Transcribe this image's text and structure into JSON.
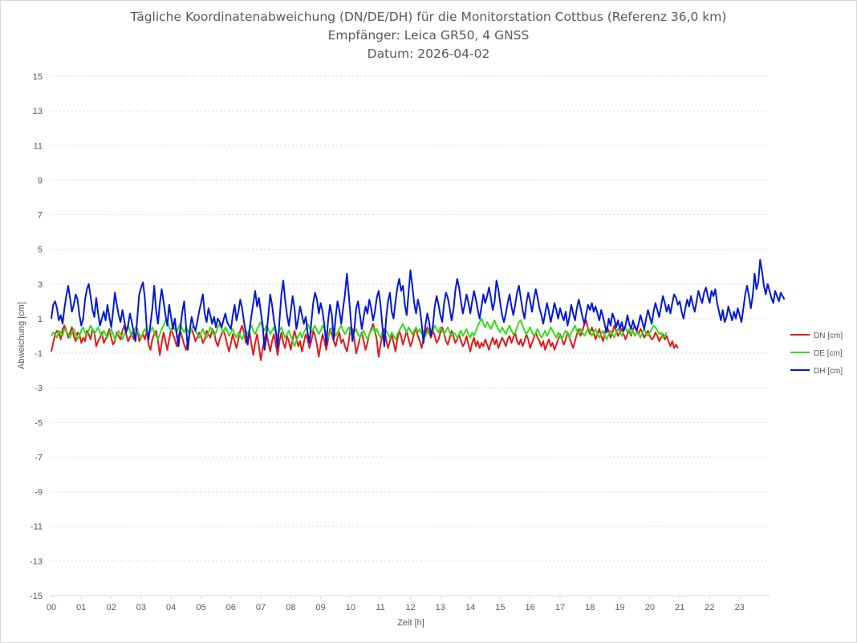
{
  "chart_data": {
    "type": "line",
    "title": [
      "Tägliche Koordinatenabweichung (DN/DE/DH) für die Monitorstation Cottbus (Referenz 36,0 km)",
      "Empfänger: Leica GR50, 4 GNSS",
      "Datum: 2026-04-02"
    ],
    "xlabel": "Zeit [h]",
    "ylabel": "Abweichung [cm]",
    "xlim": [
      0,
      24
    ],
    "ylim": [
      -15,
      15
    ],
    "x_ticks": [
      "00",
      "01",
      "02",
      "03",
      "04",
      "05",
      "06",
      "07",
      "08",
      "09",
      "10",
      "11",
      "12",
      "13",
      "14",
      "15",
      "16",
      "17",
      "18",
      "19",
      "20",
      "21",
      "22",
      "23"
    ],
    "y_ticks": [
      15,
      13,
      11,
      9,
      7,
      5,
      3,
      1,
      -1,
      -3,
      -5,
      -7,
      -9,
      -11,
      -13,
      -15
    ],
    "grid": "horizontal-dotted",
    "legend": "right",
    "x_step_h": 0.0625,
    "series": [
      {
        "name": "DN [cm]",
        "color": "#e31a1c",
        "values": [
          -0.9,
          -0.4,
          0.1,
          0.3,
          0.2,
          -0.2,
          0.4,
          0.6,
          0.3,
          -0.1,
          0.2,
          0.5,
          0.0,
          -0.3,
          0.2,
          0.1,
          -0.4,
          -0.1,
          -0.3,
          0.3,
          0.1,
          -0.2,
          0.4,
          0.2,
          -0.6,
          -0.3,
          -0.1,
          0.2,
          -0.4,
          -0.2,
          0.1,
          0.4,
          -0.1,
          -0.5,
          -0.3,
          0.2,
          0.0,
          -0.2,
          0.3,
          0.6,
          0.1,
          -0.3,
          -0.1,
          0.2,
          -0.2,
          0.1,
          0.4,
          -0.3,
          -0.1,
          0.1,
          -0.2,
          0.3,
          -0.5,
          -0.8,
          -0.2,
          0.1,
          0.3,
          -0.3,
          -1.1,
          -0.4,
          0.2,
          -0.3,
          -0.8,
          -0.2,
          0.4,
          0.1,
          -0.2,
          -0.6,
          0.0,
          0.3,
          -0.1,
          -0.5,
          -0.8,
          -0.3,
          0.2,
          0.4,
          0.1,
          -0.3,
          -0.1,
          0.2,
          0.0,
          -0.4,
          -0.2,
          0.3,
          0.1,
          -0.1,
          0.4,
          0.2,
          -0.3,
          -0.6,
          -0.2,
          0.1,
          0.3,
          0.0,
          -0.5,
          -0.9,
          -0.4,
          0.1,
          -0.3,
          -0.7,
          -0.2,
          0.3,
          0.6,
          0.2,
          -0.4,
          -0.1,
          0.2,
          -0.5,
          -1.1,
          -0.4,
          0.1,
          -0.6,
          -1.4,
          -0.7,
          -0.2,
          0.2,
          -0.4,
          -0.9,
          -0.3,
          0.1,
          -0.5,
          -1.1,
          -0.3,
          0.2,
          -0.4,
          -0.7,
          0.0,
          -0.3,
          -0.8,
          -0.2,
          0.3,
          -0.1,
          -0.6,
          -0.3,
          -0.9,
          -0.4,
          0.1,
          -0.2,
          -0.7,
          -0.3,
          0.3,
          0.0,
          -0.5,
          -1.2,
          -0.5,
          0.1,
          -0.3,
          -0.8,
          -0.2,
          0.4,
          0.1,
          -0.3,
          -0.6,
          -0.1,
          0.2,
          -0.4,
          -0.2,
          -0.6,
          -0.9,
          -0.3,
          0.5,
          0.4,
          -0.2,
          -1.0,
          -0.6,
          -0.1,
          0.2,
          -0.3,
          -0.8,
          -0.4,
          0.1,
          0.4,
          0.7,
          0.3,
          -0.2,
          -1.2,
          -0.5,
          0.0,
          0.4,
          -0.2,
          -0.7,
          -0.3,
          0.1,
          -0.4,
          -0.9,
          -0.2,
          0.3,
          0.0,
          -0.5,
          -0.1,
          0.3,
          -0.2,
          -0.6,
          -0.3,
          0.2,
          0.4,
          0.0,
          -0.3,
          -0.7,
          -0.2,
          0.1,
          0.5,
          0.2,
          -0.1,
          0.3,
          0.0,
          -0.4,
          -0.2,
          0.2,
          0.5,
          0.1,
          -0.3,
          -0.5,
          -0.1,
          0.3,
          0.0,
          -0.4,
          -0.2,
          0.1,
          -0.3,
          -0.6,
          -0.4,
          0.0,
          -0.5,
          -0.9,
          -0.4,
          -0.1,
          -0.6,
          -0.3,
          -0.7,
          -0.4,
          -0.6,
          -0.2,
          -0.5,
          -0.8,
          -0.4,
          -0.1,
          -0.5,
          -0.2,
          -0.7,
          -0.4,
          -0.1,
          -0.3,
          -0.6,
          -0.2,
          0.0,
          -0.4,
          -0.1,
          0.2,
          -0.3,
          -0.5,
          -0.2,
          -0.6,
          -0.3,
          0.1,
          -0.2,
          -0.7,
          -0.4,
          -0.1,
          0.2,
          -0.1,
          -0.3,
          -0.6,
          -0.3,
          -0.8,
          -0.5,
          -0.2,
          -0.6,
          -0.4,
          -0.8,
          -0.5,
          -0.2,
          0.1,
          -0.2,
          -0.5,
          -0.2,
          0.2,
          -0.1,
          -0.4,
          -0.7,
          -0.3,
          0.1,
          0.4,
          0.0,
          0.3,
          0.7,
          0.9,
          0.4,
          0.1,
          0.5,
          0.2,
          -0.2,
          0.1,
          0.4,
          0.0,
          -0.3,
          0.2,
          0.5,
          0.3,
          -0.1,
          0.2,
          0.6,
          0.3,
          0.0,
          0.2,
          0.4,
          0.1,
          -0.2,
          0.1,
          0.3,
          0.0,
          0.4,
          0.6,
          0.3,
          0.1,
          0.4,
          0.2,
          -0.1,
          0.1,
          0.3,
          0.0,
          -0.2,
          -0.1,
          0.2,
          0.0,
          -0.3,
          -0.1,
          0.1,
          -0.2,
          0.0,
          -0.3,
          -0.6,
          -0.3,
          -0.7,
          -0.5,
          -0.7
        ]
      },
      {
        "name": "DE [cm]",
        "color": "#33dd1c",
        "values": [
          0.0,
          0.2,
          0.1,
          -0.1,
          0.3,
          0.2,
          0.0,
          0.4,
          0.3,
          0.1,
          -0.1,
          0.2,
          0.4,
          0.1,
          -0.2,
          0.0,
          0.3,
          0.5,
          0.2,
          0.0,
          0.3,
          0.6,
          0.4,
          0.1,
          0.3,
          0.5,
          0.2,
          0.0,
          0.3,
          0.1,
          -0.1,
          0.2,
          0.4,
          0.1,
          -0.2,
          0.0,
          0.3,
          0.1,
          -0.2,
          0.1,
          0.4,
          0.6,
          0.3,
          0.0,
          0.2,
          0.5,
          0.3,
          0.1,
          -0.1,
          0.2,
          0.4,
          0.2,
          0.0,
          0.3,
          0.5,
          0.2,
          0.0,
          -0.2,
          0.1,
          0.4,
          0.6,
          0.9,
          0.8,
          0.5,
          0.3,
          0.6,
          0.4,
          0.2,
          0.5,
          0.7,
          0.4,
          0.2,
          0.5,
          0.3,
          0.1,
          0.4,
          0.6,
          0.3,
          0.1,
          -0.1,
          0.2,
          0.4,
          0.1,
          -0.1,
          0.2,
          0.5,
          0.3,
          0.0,
          0.2,
          0.5,
          0.7,
          0.4,
          0.2,
          0.5,
          0.3,
          0.0,
          0.2,
          0.4,
          0.1,
          -0.1,
          0.2,
          0.0,
          -0.2,
          0.1,
          0.3,
          0.1,
          0.4,
          0.6,
          0.3,
          0.1,
          0.4,
          0.6,
          0.8,
          0.5,
          0.3,
          0.6,
          0.4,
          0.1,
          0.3,
          0.5,
          0.2,
          0.0,
          0.3,
          0.5,
          0.2,
          -0.1,
          0.1,
          0.3,
          0.0,
          -0.3,
          -0.6,
          -0.3,
          0.0,
          0.2,
          -0.1,
          0.2,
          0.4,
          0.7,
          0.5,
          0.2,
          0.4,
          0.6,
          0.3,
          0.1,
          0.3,
          0.6,
          0.4,
          0.1,
          -0.1,
          0.2,
          0.5,
          0.3,
          0.0,
          0.2,
          0.4,
          0.6,
          0.3,
          0.1,
          0.3,
          0.5,
          0.2,
          0.0,
          0.2,
          0.4,
          0.1,
          -0.1,
          0.1,
          0.3,
          0.0,
          -0.2,
          0.1,
          0.3,
          0.5,
          0.2,
          0.4,
          0.1,
          -0.1,
          0.2,
          0.0,
          0.3,
          0.1,
          -0.1,
          0.2,
          0.0,
          -0.2,
          0.1,
          0.3,
          0.5,
          0.7,
          0.4,
          0.2,
          0.5,
          0.3,
          0.1,
          0.3,
          0.5,
          0.2,
          0.4,
          0.1,
          0.3,
          0.0,
          0.2,
          0.4,
          0.1,
          0.3,
          0.6,
          0.4,
          0.2,
          0.5,
          0.3,
          0.1,
          0.3,
          0.5,
          0.2,
          0.0,
          0.2,
          0.1,
          -0.1,
          0.1,
          0.3,
          0.0,
          0.2,
          0.4,
          0.1,
          -0.1,
          0.2,
          0.0,
          0.3,
          0.6,
          0.8,
          1.0,
          0.7,
          0.5,
          0.8,
          0.6,
          0.4,
          0.7,
          0.9,
          0.6,
          0.4,
          0.2,
          0.5,
          0.3,
          0.1,
          0.4,
          0.6,
          0.3,
          0.1,
          0.2,
          0.5,
          0.8,
          0.9,
          0.6,
          0.3,
          0.1,
          0.3,
          0.5,
          0.2,
          0.0,
          0.2,
          0.4,
          0.1,
          -0.1,
          0.1,
          0.3,
          0.0,
          0.2,
          0.5,
          0.3,
          0.1,
          -0.1,
          0.2,
          0.0,
          -0.2,
          0.1,
          0.3,
          0.1,
          -0.1,
          0.2,
          0.4,
          0.6,
          0.3,
          0.1,
          0.4,
          0.2,
          0.0,
          0.2,
          0.5,
          0.3,
          0.0,
          0.2,
          0.4,
          0.1,
          -0.1,
          0.1,
          0.3,
          0.0,
          -0.2,
          0.1,
          0.3,
          0.1,
          -0.1,
          0.2,
          0.4,
          0.2,
          0.0,
          0.3,
          0.5,
          0.2,
          0.4,
          0.1,
          0.3,
          0.0,
          0.2,
          0.1,
          -0.1,
          0.2,
          0.4,
          0.1,
          0.0,
          0.2,
          0.4,
          0.6,
          0.5,
          0.3,
          0.1,
          0.2,
          -0.1,
          0.0,
          0.2
        ]
      },
      {
        "name": "DH [cm]",
        "color": "#0018d8",
        "values": [
          1.0,
          1.8,
          2.0,
          1.6,
          0.9,
          1.2,
          0.7,
          1.6,
          2.3,
          2.9,
          2.2,
          1.4,
          1.8,
          2.4,
          2.1,
          1.2,
          0.6,
          1.0,
          2.1,
          2.7,
          3.0,
          2.3,
          1.5,
          1.1,
          2.2,
          1.3,
          0.6,
          1.0,
          1.4,
          0.9,
          1.8,
          1.1,
          0.5,
          1.4,
          2.5,
          1.8,
          1.2,
          0.8,
          1.5,
          0.9,
          0.2,
          0.6,
          1.3,
          0.8,
          0.2,
          -0.3,
          1.1,
          2.4,
          2.8,
          3.1,
          2.2,
          0.4,
          -0.2,
          0.7,
          1.6,
          2.9,
          1.5,
          0.7,
          1.9,
          2.7,
          2.0,
          1.2,
          0.6,
          1.8,
          1.1,
          0.4,
          1.0,
          0.1,
          -0.6,
          0.5,
          1.4,
          2.0,
          0.6,
          -0.8,
          0.3,
          1.1,
          0.6,
          0.3,
          0.8,
          1.4,
          1.9,
          2.4,
          1.3,
          0.8,
          1.6,
          1.2,
          0.7,
          1.1,
          0.5,
          1.0,
          0.8,
          0.5,
          0.9,
          1.3,
          0.8,
          0.6,
          0.4,
          1.2,
          1.8,
          0.9,
          1.4,
          2.1,
          1.6,
          0.8,
          0.2,
          -0.5,
          0.4,
          1.2,
          1.9,
          2.6,
          1.7,
          2.2,
          1.4,
          0.6,
          -0.8,
          0.0,
          1.2,
          2.4,
          1.8,
          0.9,
          0.3,
          -0.7,
          0.9,
          2.4,
          3.2,
          2.1,
          1.2,
          0.6,
          1.4,
          2.3,
          1.6,
          0.4,
          1.0,
          1.7,
          1.2,
          0.7,
          1.1,
          0.2,
          -0.4,
          0.8,
          1.9,
          2.5,
          2.1,
          1.3,
          1.9,
          1.4,
          0.6,
          -0.5,
          0.9,
          1.8,
          1.2,
          -0.2,
          1.1,
          2.0,
          1.5,
          0.7,
          1.6,
          2.4,
          3.6,
          2.4,
          1.1,
          -0.3,
          0.4,
          1.6,
          2.0,
          1.2,
          0.4,
          1.1,
          1.7,
          1.3,
          2.1,
          1.6,
          0.9,
          1.4,
          2.2,
          2.6,
          1.8,
          0.6,
          -0.6,
          1.0,
          2.0,
          2.5,
          1.4,
          1.0,
          2.0,
          2.8,
          3.3,
          2.6,
          2.9,
          1.8,
          1.2,
          2.5,
          3.8,
          2.9,
          1.9,
          1.3,
          2.1,
          1.6,
          0.7,
          -0.4,
          0.6,
          1.3,
          0.8,
          0.0,
          0.6,
          1.7,
          2.3,
          1.8,
          1.2,
          0.8,
          1.9,
          2.5,
          2.2,
          1.6,
          0.9,
          1.5,
          2.6,
          3.3,
          2.8,
          2.0,
          1.3,
          1.8,
          2.4,
          1.9,
          1.3,
          2.0,
          2.6,
          2.1,
          1.5,
          1.0,
          1.7,
          2.4,
          1.9,
          2.3,
          2.8,
          2.2,
          1.5,
          2.0,
          3.2,
          2.7,
          1.9,
          1.2,
          0.8,
          1.3,
          1.9,
          2.4,
          1.7,
          1.2,
          1.8,
          2.5,
          2.9,
          2.2,
          1.5,
          1.0,
          1.9,
          2.5,
          2.0,
          1.4,
          2.1,
          2.7,
          2.2,
          1.6,
          1.2,
          0.7,
          1.3,
          1.9,
          1.4,
          0.8,
          1.3,
          1.9,
          1.5,
          1.0,
          1.6,
          1.2,
          0.9,
          1.4,
          0.6,
          1.1,
          1.8,
          1.3,
          0.9,
          1.6,
          2.1,
          1.6,
          1.1,
          0.7,
          1.3,
          1.8,
          1.5,
          1.9,
          1.4,
          1.7,
          1.3,
          0.9,
          1.5,
          1.1,
          0.6,
          0.2,
          1.0,
          0.6,
          1.3,
          1.0,
          0.5,
          0.9,
          0.4,
          0.8,
          0.3,
          0.6,
          1.2,
          0.7,
          0.4,
          0.9,
          0.5,
          0.3,
          0.7,
          1.2,
          0.8,
          0.4,
          1.0,
          1.5,
          1.1,
          0.7,
          1.4,
          1.9,
          1.5,
          1.1,
          1.7,
          2.3,
          1.9,
          1.4,
          1.8,
          1.3,
          1.9,
          2.4,
          2.2,
          1.8,
          2.0,
          1.4,
          1.0,
          1.6,
          2.1,
          1.7,
          2.3,
          1.8,
          1.4,
          2.0,
          2.6,
          2.2,
          1.9,
          2.5,
          2.8,
          2.3,
          1.9,
          2.6,
          2.3,
          2.7,
          1.9,
          1.4,
          0.9,
          1.5,
          0.8,
          1.1,
          1.7,
          1.3,
          0.9,
          1.4,
          1.0,
          1.6,
          1.2,
          0.8,
          1.6,
          2.4,
          2.9,
          2.3,
          1.6,
          2.3,
          3.6,
          2.7,
          3.1,
          4.4,
          3.7,
          2.9,
          2.4,
          3.0,
          2.6,
          2.2,
          1.9,
          2.6,
          2.3,
          2.0,
          2.5,
          2.3,
          2.1
        ]
      }
    ]
  }
}
